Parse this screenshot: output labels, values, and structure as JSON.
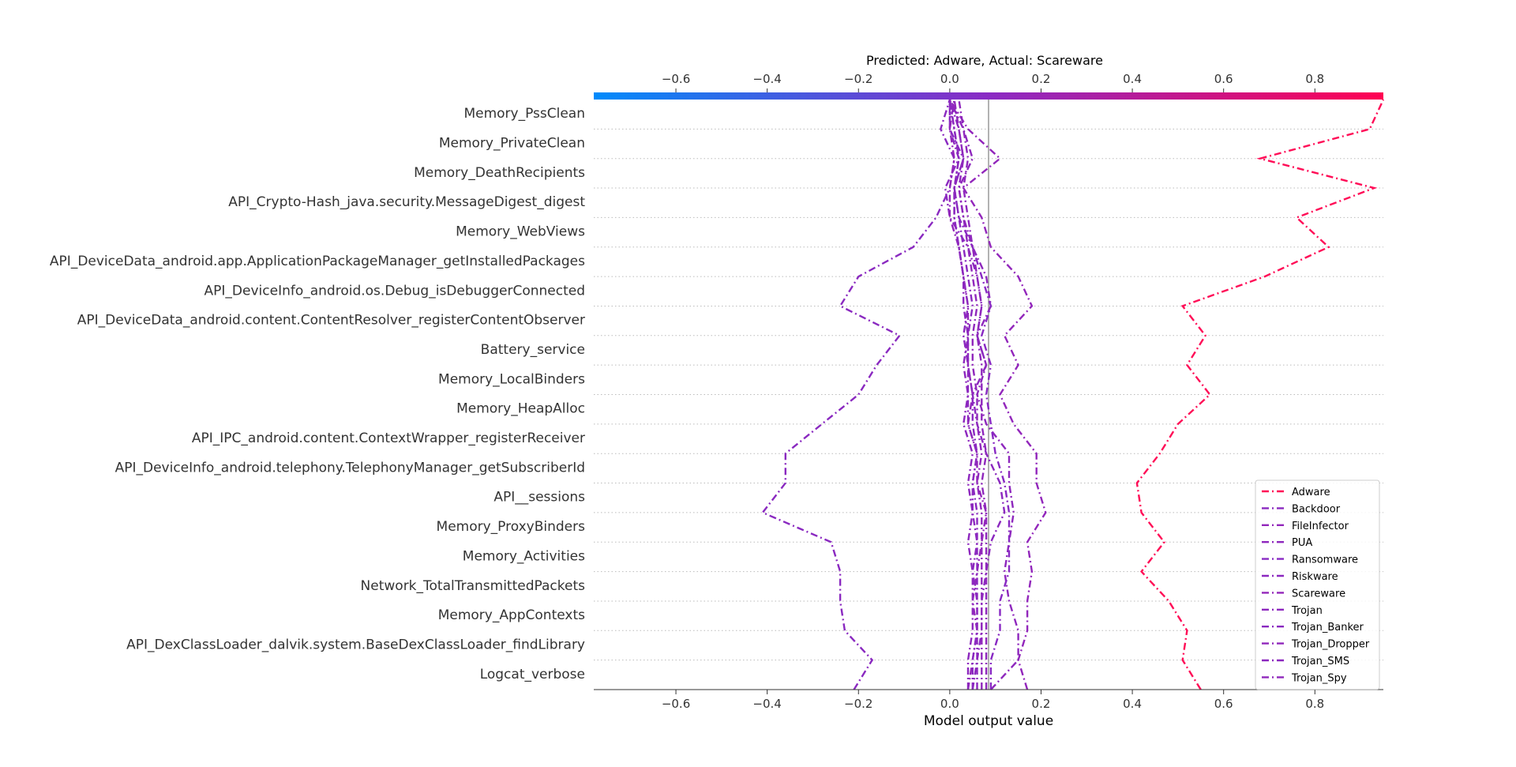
{
  "chart_data": {
    "type": "line",
    "title": "Predicted: Adware, Actual: Scareware",
    "xlabel": "Model output value",
    "ylabel": "",
    "xlim": [
      -0.78,
      0.95
    ],
    "base_value": 0.085,
    "x_ticks": [
      -0.6,
      -0.4,
      -0.2,
      0.0,
      0.2,
      0.4,
      0.6,
      0.8
    ],
    "x_tick_labels": [
      "−0.6",
      "−0.4",
      "−0.2",
      "0.0",
      "0.2",
      "0.4",
      "0.6",
      "0.8"
    ],
    "features": [
      "Memory_PssClean",
      "Memory_PrivateClean",
      "Memory_DeathRecipients",
      "API_Crypto-Hash_java.security.MessageDigest_digest",
      "Memory_WebViews",
      "API_DeviceData_android.app.ApplicationPackageManager_getInstalledPackages",
      "API_DeviceInfo_android.os.Debug_isDebuggerConnected",
      "API_DeviceData_android.content.ContentResolver_registerContentObserver",
      "Battery_service",
      "Memory_LocalBinders",
      "Memory_HeapAlloc",
      "API_IPC_android.content.ContextWrapper_registerReceiver",
      "API_DeviceInfo_android.telephony.TelephonyManager_getSubscriberId",
      "API__sessions",
      "Memory_ProxyBinders",
      "Memory_Activities",
      "Network_TotalTransmittedPackets",
      "Memory_AppContexts",
      "API_DexClassLoader_dalvik.system.BaseDexClassLoader_findLibrary",
      "Logcat_verbose"
    ],
    "legend_position": "lower-right",
    "series": [
      {
        "name": "Adware",
        "color": "#ff0d57",
        "values": [
          0.55,
          0.51,
          0.52,
          0.48,
          0.42,
          0.47,
          0.42,
          0.41,
          0.46,
          0.5,
          0.57,
          0.52,
          0.56,
          0.51,
          0.69,
          0.83,
          0.76,
          0.93,
          0.68,
          0.92,
          0.95
        ]
      },
      {
        "name": "Backdoor",
        "color": "#8a29c0",
        "values": [
          -0.21,
          -0.17,
          -0.23,
          -0.24,
          -0.24,
          -0.26,
          -0.41,
          -0.36,
          -0.36,
          -0.28,
          -0.2,
          -0.16,
          -0.11,
          -0.24,
          -0.2,
          -0.08,
          -0.03,
          0.0,
          0.01,
          -0.02,
          0.0
        ]
      },
      {
        "name": "FileInfector",
        "color": "#9226bb",
        "values": [
          0.17,
          0.15,
          0.17,
          0.17,
          0.18,
          0.17,
          0.21,
          0.19,
          0.19,
          0.14,
          0.11,
          0.15,
          0.12,
          0.18,
          0.15,
          0.09,
          0.07,
          0.03,
          0.11,
          0.04,
          0.0
        ]
      },
      {
        "name": "PUA",
        "color": "#8e27bd",
        "values": [
          0.09,
          0.15,
          0.15,
          0.13,
          0.12,
          0.13,
          0.14,
          0.13,
          0.13,
          0.08,
          0.06,
          0.08,
          0.06,
          0.09,
          0.08,
          0.05,
          0.03,
          0.02,
          0.05,
          0.03,
          0.0
        ]
      },
      {
        "name": "Ransomware",
        "color": "#8829c3",
        "values": [
          0.09,
          0.09,
          0.11,
          0.11,
          0.13,
          0.13,
          0.13,
          0.12,
          0.1,
          0.09,
          0.08,
          0.09,
          0.07,
          0.09,
          0.07,
          0.05,
          0.02,
          0.01,
          0.03,
          0.0,
          0.0
        ]
      },
      {
        "name": "Riskware",
        "color": "#8b28bf",
        "values": [
          0.05,
          0.06,
          0.07,
          0.07,
          0.08,
          0.09,
          0.12,
          0.11,
          0.08,
          0.06,
          0.05,
          0.08,
          0.06,
          0.07,
          0.06,
          0.04,
          0.0,
          -0.01,
          0.02,
          0.0,
          0.0
        ]
      },
      {
        "name": "Scareware",
        "color": "#9326ba",
        "values": [
          0.04,
          0.05,
          0.06,
          0.05,
          0.06,
          0.07,
          0.08,
          0.06,
          0.06,
          0.04,
          0.05,
          0.04,
          0.04,
          0.04,
          0.03,
          0.02,
          0.0,
          0.0,
          0.01,
          0.0,
          0.01
        ]
      },
      {
        "name": "Trojan",
        "color": "#8d27be",
        "values": [
          0.04,
          0.04,
          0.05,
          0.05,
          0.05,
          0.04,
          0.05,
          0.04,
          0.05,
          0.03,
          0.04,
          0.03,
          0.04,
          0.03,
          0.03,
          0.02,
          0.01,
          0.01,
          0.03,
          0.02,
          0.0
        ]
      },
      {
        "name": "Trojan_Banker",
        "color": "#8a28c0",
        "values": [
          0.05,
          0.05,
          0.06,
          0.06,
          0.06,
          0.06,
          0.06,
          0.05,
          0.06,
          0.05,
          0.05,
          0.04,
          0.04,
          0.05,
          0.04,
          0.03,
          0.02,
          0.01,
          0.02,
          0.01,
          0.0
        ]
      },
      {
        "name": "Trojan_Dropper",
        "color": "#9027bc",
        "values": [
          0.07,
          0.07,
          0.07,
          0.07,
          0.07,
          0.07,
          0.07,
          0.06,
          0.07,
          0.06,
          0.06,
          0.05,
          0.05,
          0.06,
          0.05,
          0.04,
          0.03,
          0.02,
          0.03,
          0.02,
          0.01
        ]
      },
      {
        "name": "Trojan_SMS",
        "color": "#8c28bf",
        "values": [
          0.06,
          0.06,
          0.06,
          0.06,
          0.05,
          0.06,
          0.05,
          0.05,
          0.06,
          0.04,
          0.04,
          0.04,
          0.03,
          0.04,
          0.03,
          0.02,
          0.01,
          0.01,
          0.02,
          0.01,
          0.0
        ]
      },
      {
        "name": "Trojan_Spy",
        "color": "#8f27bc",
        "values": [
          0.08,
          0.08,
          0.08,
          0.08,
          0.08,
          0.08,
          0.08,
          0.07,
          0.08,
          0.07,
          0.07,
          0.07,
          0.06,
          0.07,
          0.06,
          0.05,
          0.04,
          0.03,
          0.04,
          0.03,
          0.02
        ]
      }
    ]
  }
}
